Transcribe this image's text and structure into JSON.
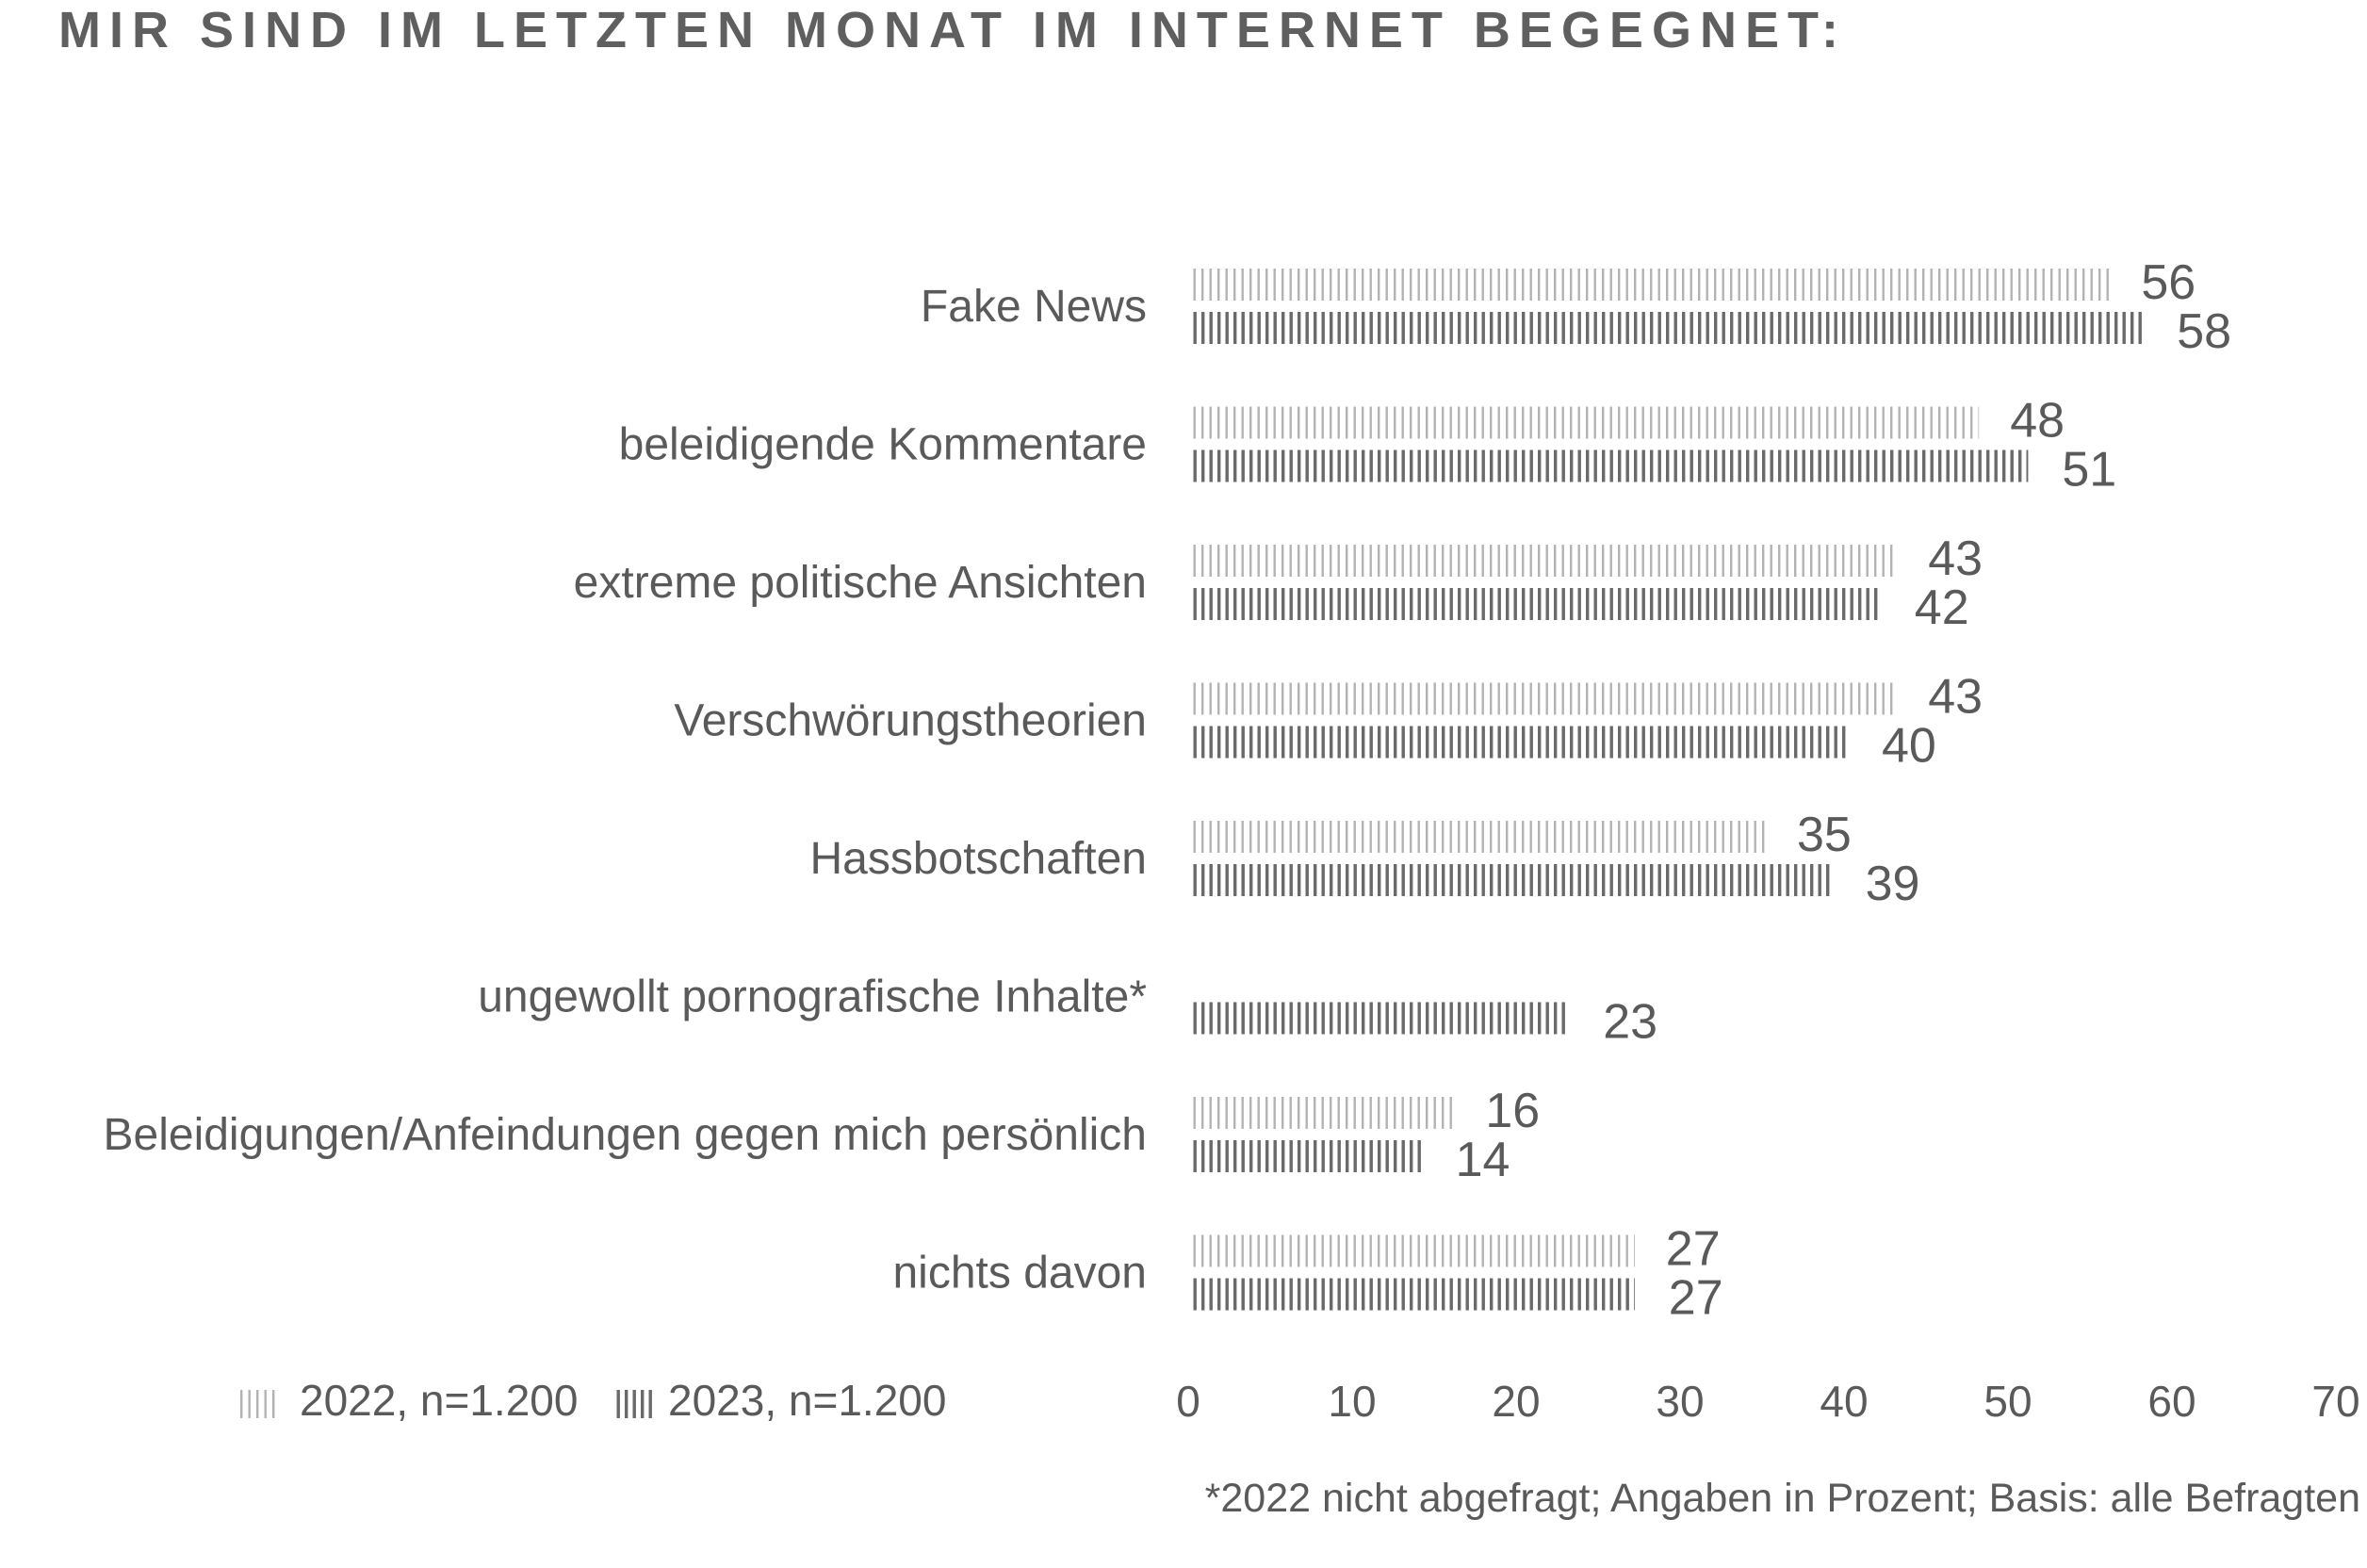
{
  "chart_data": {
    "type": "bar",
    "orientation": "horizontal",
    "title": "MIR SIND IM LETZTEN MONAT IM INTERNET BEGEGNET:",
    "categories": [
      "Fake News",
      "beleidigende Kommentare",
      "extreme politische Ansichten",
      "Verschwörungstheorien",
      "Hassbotschaften",
      "ungewollt pornografische Inhalte*",
      "Beleidigungen/Anfeindungen gegen mich persönlich",
      "nichts davon"
    ],
    "series": [
      {
        "name": "2022, n=1.200",
        "color": "#b5b5b5",
        "values": [
          56,
          48,
          43,
          43,
          35,
          null,
          16,
          27
        ]
      },
      {
        "name": "2023, n=1.200",
        "color": "#6a6a6a",
        "values": [
          58,
          51,
          42,
          40,
          39,
          23,
          14,
          27
        ]
      }
    ],
    "xlim": [
      0,
      70
    ],
    "xticks": [
      0,
      10,
      20,
      30,
      40,
      50,
      60,
      70
    ],
    "xlabel": "",
    "ylabel": "",
    "grid": false,
    "legend_position": "bottom-left",
    "footnote": "*2022 nicht abgefragt; Angaben in Prozent; Basis: alle Befragten"
  }
}
